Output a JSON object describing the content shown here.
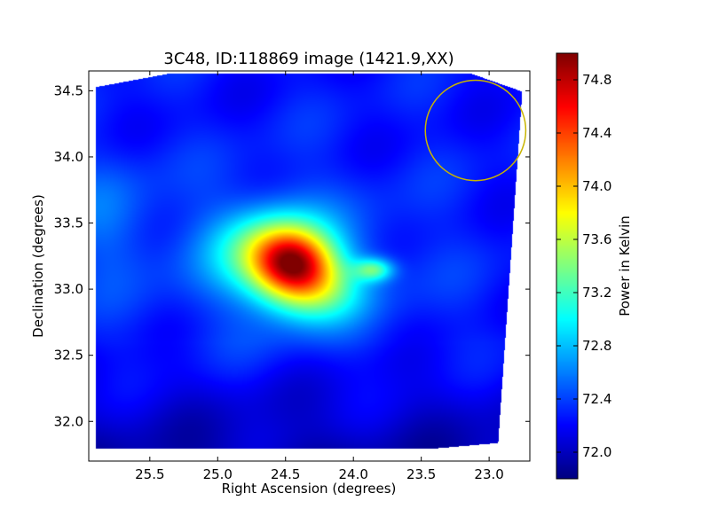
{
  "chart_data": {
    "type": "heatmap",
    "title": "3C48, ID:118869 image (1421.9,XX)",
    "xlabel": "Right Ascension (degrees)",
    "ylabel": "Declination (degrees)",
    "xlim": [
      25.95,
      22.7
    ],
    "ylim": [
      31.7,
      34.65
    ],
    "x_ticks": [
      25.5,
      25.0,
      24.5,
      24.0,
      23.5,
      23.0
    ],
    "x_tick_labels": [
      "25.5",
      "25.0",
      "24.5",
      "24.0",
      "23.5",
      "23.0"
    ],
    "y_ticks": [
      32.0,
      32.5,
      33.0,
      33.5,
      34.0,
      34.5
    ],
    "y_tick_labels": [
      "32.0",
      "32.5",
      "33.0",
      "33.5",
      "34.0",
      "34.5"
    ],
    "colorbar": {
      "label": "Power in Kelvin",
      "range": [
        71.8,
        75.0
      ],
      "ticks": [
        72.0,
        72.4,
        72.8,
        73.2,
        73.6,
        74.0,
        74.4,
        74.8
      ],
      "tick_labels": [
        "72.0",
        "72.4",
        "72.8",
        "73.2",
        "73.6",
        "74.0",
        "74.4",
        "74.8"
      ],
      "colormap": "jet"
    },
    "image_extent": {
      "ra": [
        25.9,
        22.75
      ],
      "dec": [
        31.8,
        34.63
      ]
    },
    "background_level": 72.25,
    "sources": [
      {
        "ra": 24.45,
        "dec": 33.2,
        "peak": 74.95,
        "sigma_ra": 0.2,
        "sigma_dec": 0.17
      },
      {
        "ra": 24.6,
        "dec": 33.3,
        "peak": 74.1,
        "sigma_ra": 0.28,
        "sigma_dec": 0.22
      },
      {
        "ra": 24.3,
        "dec": 33.0,
        "peak": 73.9,
        "sigma_ra": 0.25,
        "sigma_dec": 0.18
      },
      {
        "ra": 23.85,
        "dec": 33.15,
        "peak": 73.8,
        "sigma_ra": 0.1,
        "sigma_dec": 0.06
      },
      {
        "ra": 24.5,
        "dec": 33.2,
        "peak": 72.7,
        "sigma_ra": 0.7,
        "sigma_dec": 0.45
      }
    ],
    "beam_circle": {
      "ra": 23.1,
      "dec": 34.2,
      "radius_deg": 0.37,
      "color": "#c8b400"
    }
  }
}
